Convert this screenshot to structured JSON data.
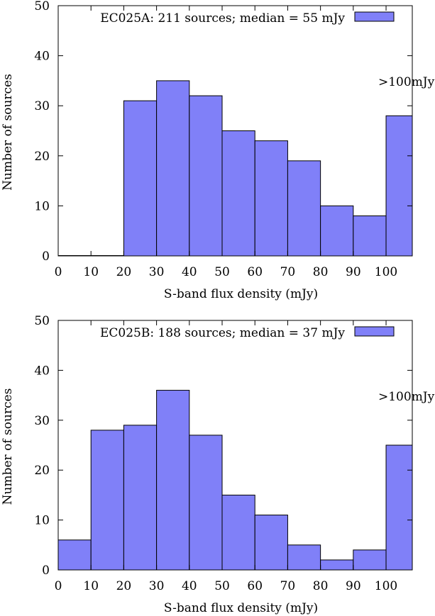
{
  "chart_data": [
    {
      "type": "bar",
      "xlabel": "S-band flux density (mJy)",
      "ylabel": "Number of sources",
      "ylim": [
        0,
        50
      ],
      "yticks": [
        "0",
        "10",
        "20",
        "30",
        "40",
        "50"
      ],
      "xticks": [
        "0",
        "10",
        "20",
        "30",
        "40",
        "50",
        "60",
        "70",
        "80",
        "90",
        "100"
      ],
      "xlim": [
        0,
        108
      ],
      "bin_edges": [
        0,
        10,
        20,
        30,
        40,
        50,
        60,
        70,
        80,
        90,
        100,
        108
      ],
      "values": [
        0,
        0,
        31,
        35,
        32,
        25,
        23,
        19,
        10,
        8,
        28
      ],
      "legend": "EC025A: 211 sources; median = 55 mJy",
      "legend_position": "top-right",
      "annotation": ">100mJy",
      "bar_color": "#8080f8",
      "grid": false
    },
    {
      "type": "bar",
      "xlabel": "S-band flux density (mJy)",
      "ylabel": "Number of sources",
      "ylim": [
        0,
        50
      ],
      "yticks": [
        "0",
        "10",
        "20",
        "30",
        "40",
        "50"
      ],
      "xticks": [
        "0",
        "10",
        "20",
        "30",
        "40",
        "50",
        "60",
        "70",
        "80",
        "90",
        "100"
      ],
      "xlim": [
        0,
        108
      ],
      "bin_edges": [
        0,
        10,
        20,
        30,
        40,
        50,
        60,
        70,
        80,
        90,
        100,
        108
      ],
      "values": [
        6,
        28,
        29,
        36,
        27,
        15,
        11,
        5,
        2,
        4,
        25
      ],
      "legend": "EC025B: 188 sources; median = 37 mJy",
      "legend_position": "top-right",
      "annotation": ">100mJy",
      "bar_color": "#8080f8",
      "grid": false
    }
  ]
}
